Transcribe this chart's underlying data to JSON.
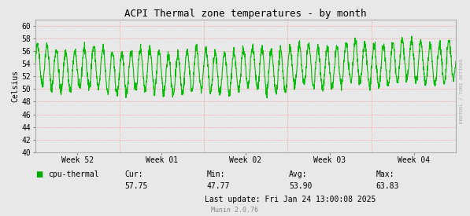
{
  "title": "ACPI Thermal zone temperatures - by month",
  "ylabel": "Celsius",
  "ylim": [
    40,
    61
  ],
  "yticks": [
    40,
    42,
    44,
    46,
    48,
    50,
    52,
    54,
    56,
    58,
    60
  ],
  "xtick_labels": [
    "Week 52",
    "Week 01",
    "Week 02",
    "Week 03",
    "Week 04"
  ],
  "xtick_pos": [
    0.1,
    0.3,
    0.5,
    0.7,
    0.9
  ],
  "line_color": "#00bb00",
  "bg_color": "#e8e8e8",
  "plot_bg_color": "#e8e8e8",
  "grid_color": "#ff8888",
  "grid_style": ":",
  "legend_label": "cpu-thermal",
  "legend_color": "#00aa00",
  "cur_label": "Cur:",
  "cur_val": "57.75",
  "min_label": "Min:",
  "min_val": "47.77",
  "avg_label": "Avg:",
  "avg_val": "53.90",
  "max_label": "Max:",
  "max_val": "63.83",
  "last_update": "Last update: Fri Jan 24 13:00:08 2025",
  "munin_label": "Munin 2.0.76",
  "rrdtool_label": "RRDTOOL / TOBI OETIKER",
  "title_fontsize": 9,
  "axis_fontsize": 7,
  "tick_fontsize": 7,
  "small_fontsize": 6,
  "seed": 42,
  "n_points": 2000,
  "base_temp": 53.5,
  "high_freq_amp": 3.2,
  "slow_amp": 0.5
}
